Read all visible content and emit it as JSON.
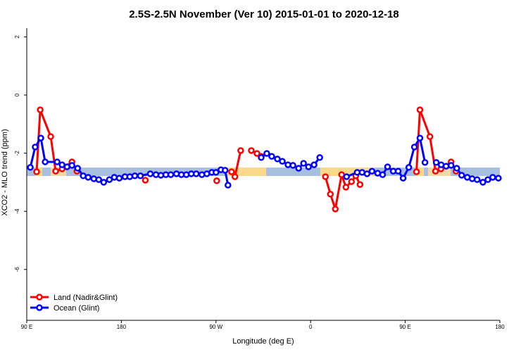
{
  "chart_data": {
    "type": "line",
    "title": "2.5S-2.5N November (Ver 10)   2015-01-01 to 2020-12-18",
    "xlabel": "Longitude (deg E)",
    "ylabel": "XCO2 - MLO trend (ppm)",
    "xlim": [
      90,
      540
    ],
    "ylim": [
      -7.75,
      2.3
    ],
    "xticks": [
      {
        "value": 90,
        "label": "90 E"
      },
      180,
      {
        "value": 270,
        "label": "90 W"
      },
      {
        "value": 360,
        "label": "0"
      },
      {
        "value": 450,
        "label": "90 E"
      },
      {
        "value": 540,
        "label": "180"
      }
    ],
    "yticks": [
      2,
      0,
      -2,
      -4,
      -6
    ],
    "legend": "bottom-left",
    "series": [
      {
        "name": "Land (Nadir&Glint)",
        "color": "#ff0000",
        "x": [
          99.4,
          102.8,
          112.8,
          117.5,
          123.6,
          133,
          137.7,
          170,
          202.8,
          230,
          270.7,
          275,
          284.8,
          288,
          293.5,
          298,
          303.6,
          309,
          313,
          340,
          374.1,
          378.8,
          383.5,
          389.5,
          393.6,
          398.9,
          403,
          407,
          430,
          460.7,
          464,
          473.5,
          478.8,
          484,
          493.6,
          498.3
        ],
        "values": [
          -2.64,
          -0.51,
          -1.43,
          -2.62,
          -2.54,
          -2.3,
          -2.62,
          null,
          -2.93,
          null,
          -2.95,
          null,
          -2.64,
          -2.81,
          -1.91,
          null,
          -1.91,
          -2.01,
          -2.11,
          null,
          -2.81,
          -3.41,
          -3.92,
          -2.74,
          -3.17,
          -2.98,
          -2.78,
          -3.08,
          null,
          -2.64,
          -0.51,
          -1.43,
          -2.62,
          -2.54,
          -2.3,
          -2.62
        ]
      },
      {
        "name": "Ocean (Glint)",
        "color": "#0000ff",
        "x": [
          93.4,
          98,
          103.4,
          107.5,
          118.9,
          123.6,
          128.3,
          133,
          138.4,
          143.7,
          148.4,
          153.8,
          158.5,
          163.2,
          168.6,
          173.3,
          178,
          183.4,
          188,
          192.8,
          198.1,
          207.5,
          212.9,
          217.6,
          222.3,
          227,
          232.4,
          237.1,
          241.8,
          246.5,
          251.2,
          256.6,
          261.3,
          266,
          270,
          274.7,
          278.7,
          281.4,
          300,
          313,
          318.3,
          323,
          328.4,
          333.1,
          338.5,
          343.2,
          348.6,
          353.3,
          358,
          363.3,
          368.7,
          380,
          394.2,
          404.3,
          409,
          413.7,
          418.4,
          423.8,
          428.5,
          433.2,
          438.6,
          443.3,
          448,
          453.4,
          458.7,
          464,
          468.8,
          474,
          479.5,
          484.2,
          488.9,
          493.6,
          499,
          503.7,
          509,
          513.7,
          518.4,
          523.9,
          528.6,
          533.2,
          538.6
        ],
        "values": [
          -2.49,
          -1.79,
          -1.48,
          -2.3,
          -2.3,
          -2.4,
          -2.47,
          -2.42,
          -2.52,
          -2.78,
          -2.83,
          -2.88,
          -2.91,
          -3.0,
          -2.91,
          -2.83,
          -2.86,
          -2.81,
          -2.81,
          -2.78,
          -2.78,
          -2.71,
          -2.74,
          -2.76,
          -2.74,
          -2.74,
          -2.71,
          -2.74,
          -2.74,
          -2.71,
          -2.71,
          -2.74,
          -2.71,
          -2.66,
          -2.66,
          -2.57,
          -2.59,
          -3.1,
          null,
          -2.15,
          -2.01,
          -2.11,
          -2.2,
          -2.28,
          -2.4,
          -2.42,
          -2.52,
          -2.35,
          -2.47,
          -2.4,
          -2.15,
          null,
          -2.81,
          -2.66,
          -2.66,
          -2.71,
          -2.62,
          -2.69,
          -2.74,
          -2.47,
          -2.62,
          -2.62,
          -2.86,
          -2.49,
          -1.79,
          -1.48,
          -2.32,
          null,
          -2.32,
          -2.4,
          -2.45,
          -2.42,
          -2.52,
          -2.76,
          -2.83,
          -2.88,
          -2.91,
          -3.0,
          -2.91,
          -2.83,
          -2.86
        ]
      }
    ]
  }
}
